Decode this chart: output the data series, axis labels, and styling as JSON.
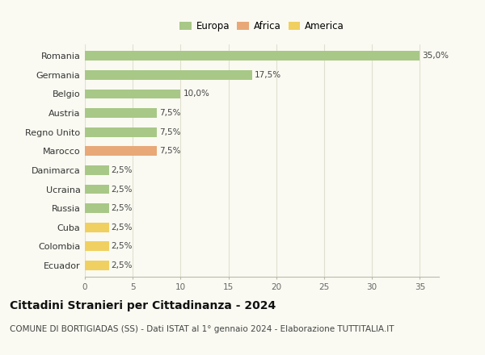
{
  "categories": [
    "Romania",
    "Germania",
    "Belgio",
    "Austria",
    "Regno Unito",
    "Marocco",
    "Danimarca",
    "Ucraina",
    "Russia",
    "Cuba",
    "Colombia",
    "Ecuador"
  ],
  "values": [
    35.0,
    17.5,
    10.0,
    7.5,
    7.5,
    7.5,
    2.5,
    2.5,
    2.5,
    2.5,
    2.5,
    2.5
  ],
  "colors": [
    "#a8c887",
    "#a8c887",
    "#a8c887",
    "#a8c887",
    "#a8c887",
    "#e8a878",
    "#a8c887",
    "#a8c887",
    "#a8c887",
    "#f0d060",
    "#f0d060",
    "#f0d060"
  ],
  "legend_labels": [
    "Europa",
    "Africa",
    "America"
  ],
  "legend_colors": [
    "#a8c887",
    "#e8a878",
    "#f0d060"
  ],
  "labels": [
    "35,0%",
    "17,5%",
    "10,0%",
    "7,5%",
    "7,5%",
    "7,5%",
    "2,5%",
    "2,5%",
    "2,5%",
    "2,5%",
    "2,5%",
    "2,5%"
  ],
  "xlim": [
    0,
    37
  ],
  "xticks": [
    0,
    5,
    10,
    15,
    20,
    25,
    30,
    35
  ],
  "title": "Cittadini Stranieri per Cittadinanza - 2024",
  "subtitle": "COMUNE DI BORTIGIADAS (SS) - Dati ISTAT al 1° gennaio 2024 - Elaborazione TUTTITALIA.IT",
  "title_fontsize": 10,
  "subtitle_fontsize": 7.5,
  "background_color": "#fafaf2",
  "bar_height": 0.5,
  "grid_color": "#e0e0d0"
}
